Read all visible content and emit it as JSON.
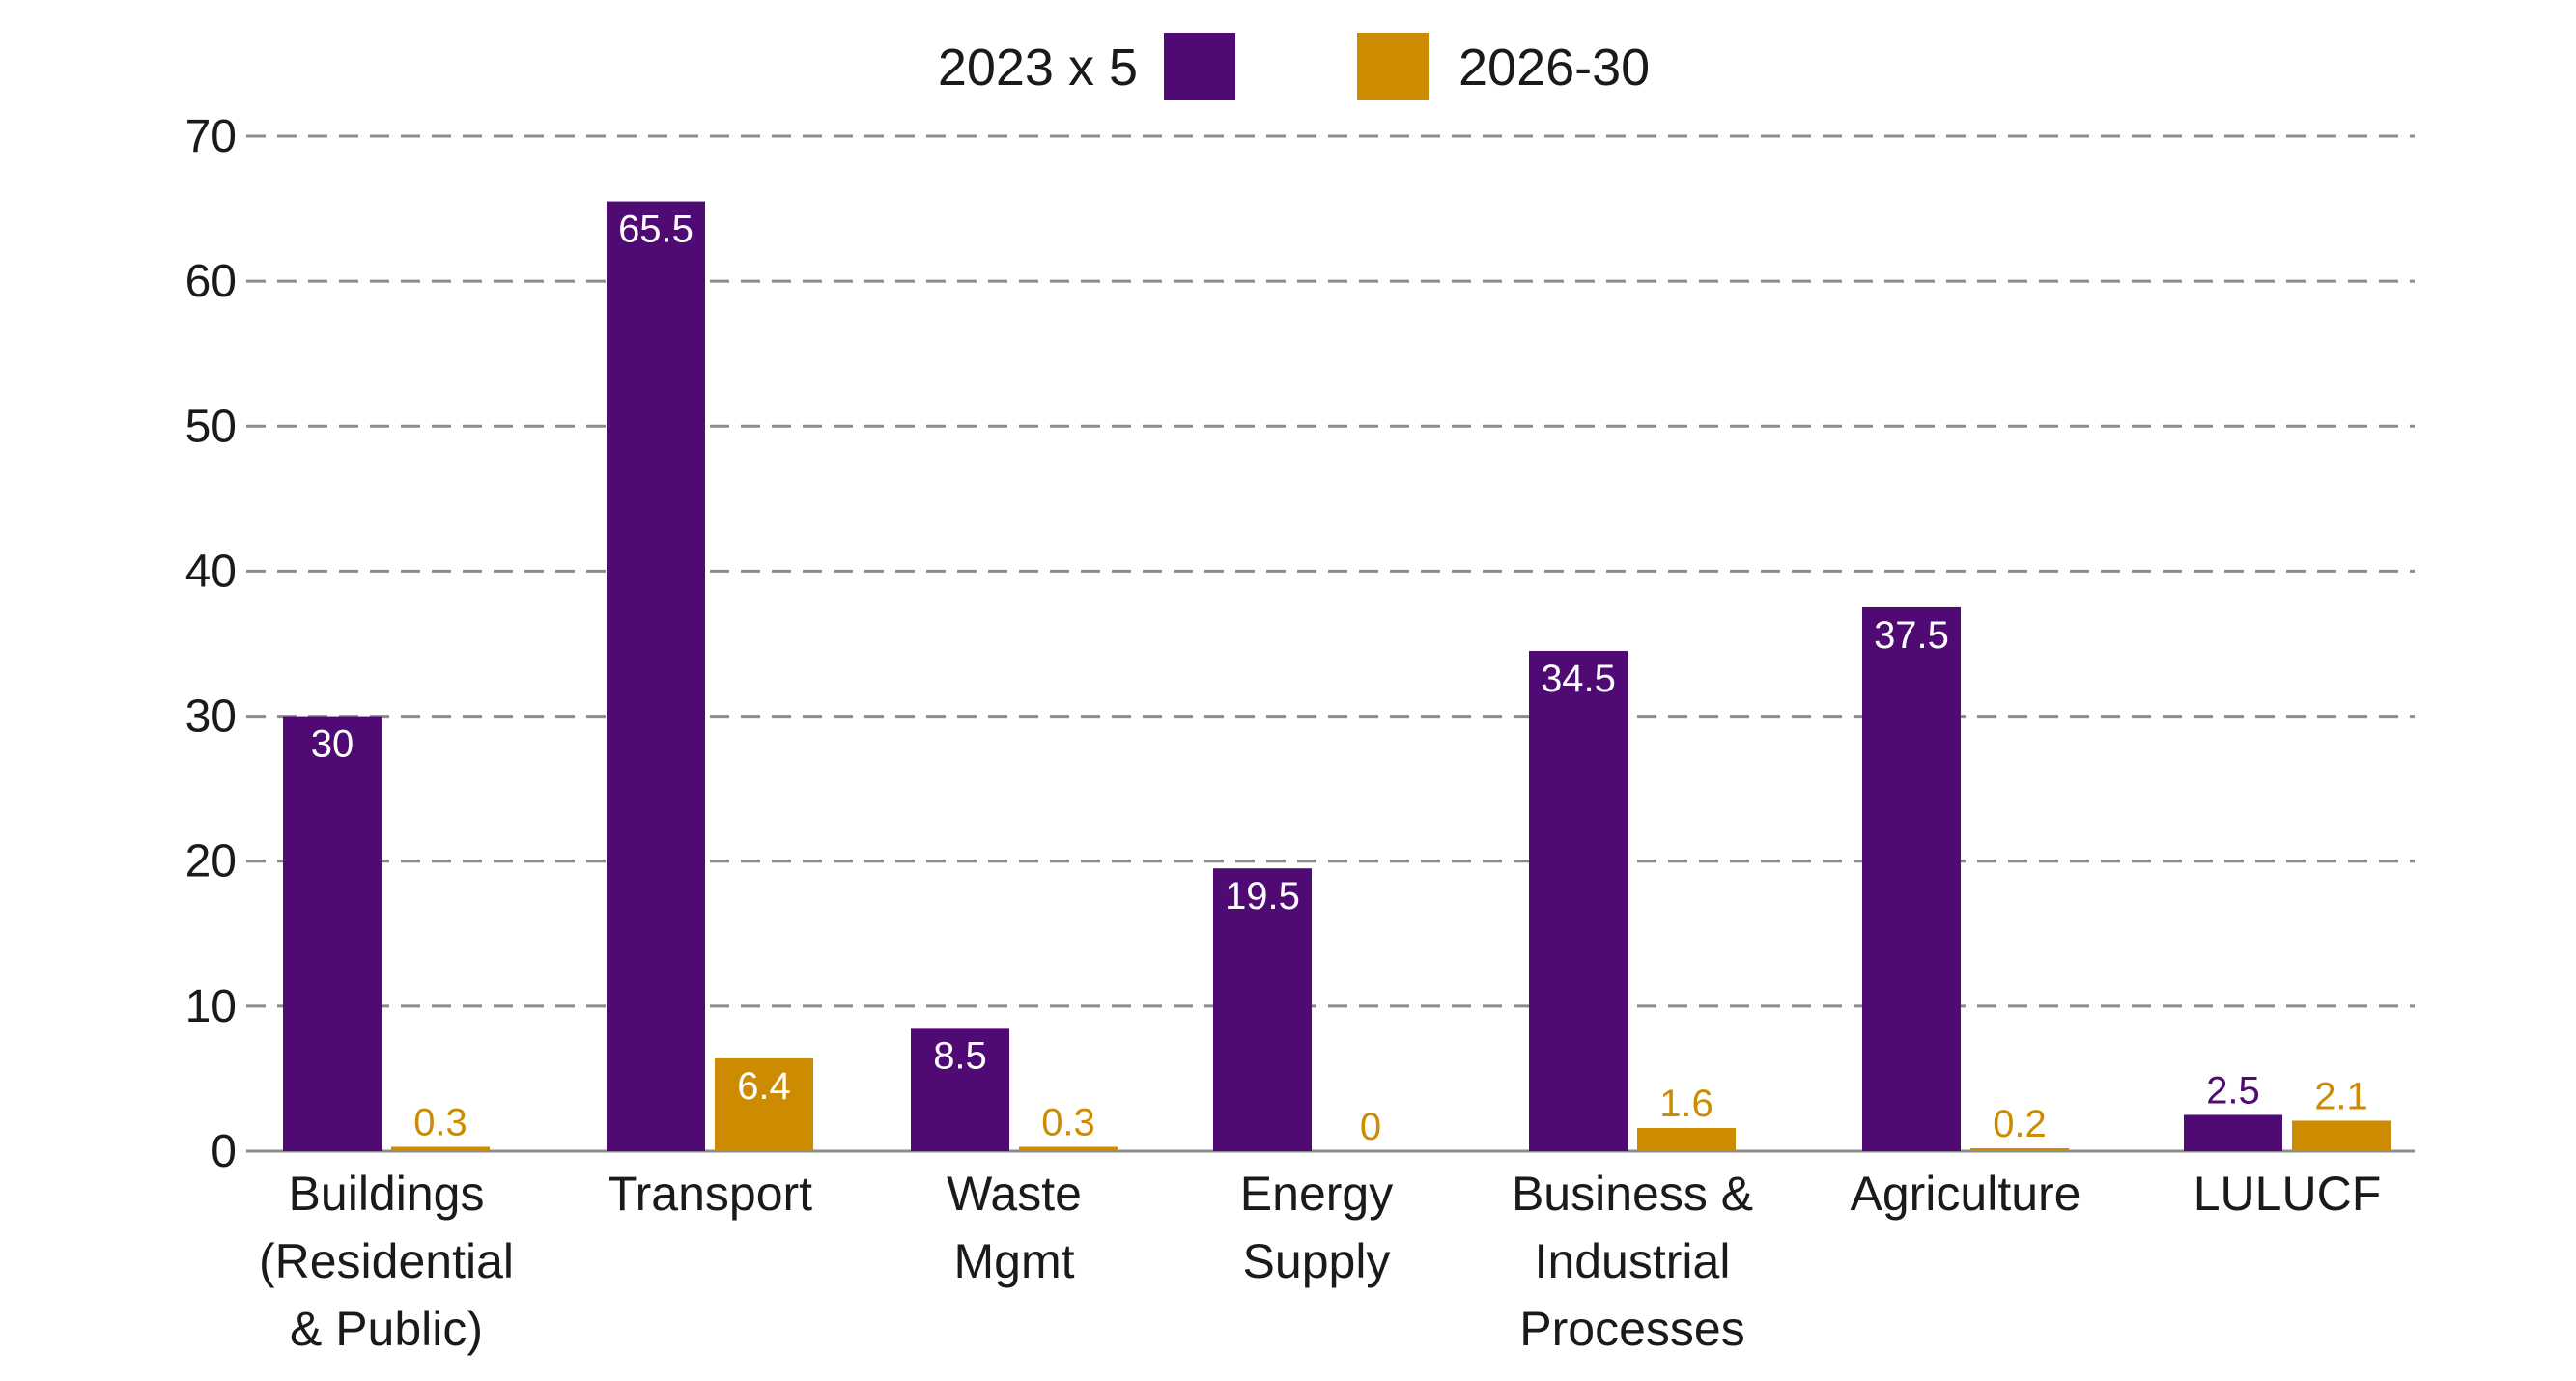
{
  "chart_data": {
    "type": "bar",
    "title": "",
    "xlabel": "",
    "ylabel": "",
    "ylim": [
      0,
      70
    ],
    "yticks": [
      0,
      10,
      20,
      30,
      40,
      50,
      60,
      70
    ],
    "grid": true,
    "legend_position": "top-center",
    "categories": [
      [
        "Buildings",
        "(Residential",
        "& Public)"
      ],
      [
        "Transport"
      ],
      [
        "Waste",
        "Mgmt"
      ],
      [
        "Energy",
        "Supply"
      ],
      [
        "Business &",
        "Industrial",
        "Processes"
      ],
      [
        "Agriculture"
      ],
      [
        "LULUCF"
      ]
    ],
    "series": [
      {
        "name": "2023 x 5",
        "color": "#4f0a74",
        "values": [
          30,
          65.5,
          8.5,
          19.5,
          34.5,
          37.5,
          2.5
        ],
        "labels": [
          "30",
          "65.5",
          "8.5",
          "19.5",
          "34.5",
          "37.5",
          "2.5"
        ]
      },
      {
        "name": "2026-30",
        "color": "#cc8b00",
        "values": [
          0.3,
          6.4,
          0.3,
          0,
          1.6,
          0.2,
          2.1
        ],
        "labels": [
          "0.3",
          "6.4",
          "0.3",
          "0",
          "1.6",
          "0.2",
          "2.1"
        ]
      }
    ]
  }
}
